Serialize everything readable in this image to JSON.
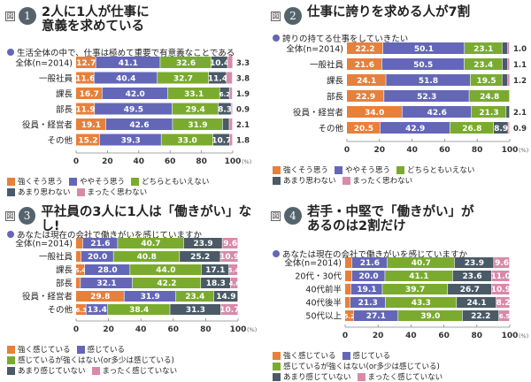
{
  "fig_mark": "図",
  "colors": [
    "#e8803a",
    "#6467b8",
    "#7aab2e",
    "#4a5a66",
    "#d98aa8"
  ],
  "chart_data": [
    {
      "type": "bar",
      "orientation": "horizontal-stacked",
      "number": "1",
      "title": "2人に1人が仕事に\n意義を求めている",
      "question": "生活全体の中で、仕事は極めて重要で有意義なことである",
      "categories": [
        "全体(n=2014)",
        "一般社員",
        "課長",
        "部長",
        "役員・経営者",
        "その他"
      ],
      "series": [
        {
          "name": "強くそう思う",
          "values": [
            12.7,
            11.6,
            16.7,
            11.9,
            19.1,
            15.2
          ]
        },
        {
          "name": "ややそう思う",
          "values": [
            41.1,
            40.4,
            42.0,
            49.5,
            42.6,
            39.3
          ]
        },
        {
          "name": "どちらともいえない",
          "values": [
            32.6,
            32.7,
            33.1,
            29.4,
            31.9,
            33.0
          ]
        },
        {
          "name": "あまり思わない",
          "values": [
            10.4,
            11.4,
            6.2,
            8.3,
            4.3,
            10.7
          ]
        },
        {
          "name": "まったく思わない",
          "values": [
            3.3,
            3.8,
            1.9,
            0.9,
            2.1,
            1.8
          ]
        }
      ],
      "outside_labels": [
        "3.3",
        "3.8",
        "1.9",
        "0.9",
        "2.1",
        "1.8"
      ],
      "xticks": [
        "0",
        "20",
        "40",
        "60",
        "80",
        "100"
      ],
      "xunit": "(%)",
      "xlim": [
        0,
        100
      ],
      "legend_rows": [
        [
          0,
          1,
          2
        ],
        [
          3,
          4
        ]
      ],
      "legend": "bottom-left"
    },
    {
      "type": "bar",
      "orientation": "horizontal-stacked",
      "number": "2",
      "title": "仕事に誇りを求める人が7割",
      "question": "誇りの持てる仕事をしていきたい",
      "categories": [
        "全体(n=2014)",
        "一般社員",
        "課長",
        "部長",
        "役員・経営者",
        "その他"
      ],
      "series": [
        {
          "name": "強くそう思う",
          "values": [
            22.2,
            21.6,
            24.1,
            22.9,
            34.0,
            20.5
          ]
        },
        {
          "name": "ややそう思う",
          "values": [
            50.1,
            50.5,
            51.8,
            52.3,
            42.6,
            42.9
          ]
        },
        {
          "name": "どちらともいえない",
          "values": [
            23.1,
            23.4,
            19.5,
            24.8,
            21.3,
            26.8
          ]
        },
        {
          "name": "あまり思わない",
          "values": [
            3.5,
            3.4,
            3.5,
            0,
            2.1,
            8.9
          ]
        },
        {
          "name": "まったく思わない",
          "values": [
            1.0,
            1.1,
            1.2,
            0,
            0,
            0.9
          ]
        }
      ],
      "outside_labels": [
        "1.0",
        "1.1",
        "1.2",
        "",
        "2.1",
        "0.9"
      ],
      "xticks": [
        "0",
        "20",
        "40",
        "60",
        "80",
        "100"
      ],
      "xunit": "(%)",
      "xlim": [
        0,
        100
      ],
      "legend_rows": [
        [
          0,
          1,
          2
        ],
        [
          3,
          4
        ]
      ],
      "legend": "bottom-left"
    },
    {
      "type": "bar",
      "orientation": "horizontal-stacked",
      "number": "3",
      "title": "平社員の3人に1人は「働きがい」なし!",
      "question": "あなたは現在の会社で働きがいを感じていますか",
      "categories": [
        "全体(n=2014)",
        "一般社員",
        "課長",
        "部長",
        "役員・経営者",
        "その他"
      ],
      "series": [
        {
          "name": "強く感じている",
          "values": [
            4.2,
            3.2,
            5.4,
            2.8,
            29.8,
            6.3
          ]
        },
        {
          "name": "感じている",
          "values": [
            21.6,
            20.0,
            28.0,
            32.1,
            31.9,
            13.4
          ]
        },
        {
          "name": "感じているが強くはない(or多少は感じている)",
          "values": [
            40.7,
            40.8,
            44.0,
            42.2,
            23.4,
            38.4
          ]
        },
        {
          "name": "あまり感じていない",
          "values": [
            23.9,
            25.2,
            17.1,
            18.3,
            14.9,
            31.3
          ]
        },
        {
          "name": "まったく感じていない",
          "values": [
            9.6,
            10.9,
            5.4,
            4.6,
            0,
            10.7
          ]
        }
      ],
      "outside_labels": [
        "",
        "",
        "",
        "",
        "",
        ""
      ],
      "xticks": [
        "0",
        "20",
        "40",
        "60",
        "80",
        "100"
      ],
      "xunit": "(%)",
      "xlim": [
        0,
        100
      ],
      "legend_rows": [
        [
          0,
          1
        ],
        [
          2
        ],
        [
          3,
          4
        ]
      ],
      "legend": "bottom-left"
    },
    {
      "type": "bar",
      "orientation": "horizontal-stacked",
      "number": "4",
      "title": "若手・中堅で「働きがい」が\nあるのは2割だけ",
      "question": "あなたは現在の会社で働きがいを感じていますか",
      "categories": [
        "全体(n=2014)",
        "20代・30代",
        "40代前半",
        "40代後半",
        "50代以上"
      ],
      "series": [
        {
          "name": "強く感じている",
          "values": [
            4.2,
            4.3,
            3.6,
            3.2,
            5.2
          ]
        },
        {
          "name": "感じている",
          "values": [
            21.6,
            20.0,
            19.1,
            21.3,
            27.1
          ]
        },
        {
          "name": "感じているが強くはない(or多少は感じている)",
          "values": [
            40.7,
            41.1,
            39.7,
            43.3,
            39.0
          ]
        },
        {
          "name": "あまり感じていない",
          "values": [
            23.9,
            23.6,
            26.7,
            24.1,
            22.2
          ]
        },
        {
          "name": "まったく感じていない",
          "values": [
            9.6,
            11.0,
            10.9,
            8.2,
            6.5
          ]
        }
      ],
      "outside_labels": [
        "",
        "",
        "",
        "",
        ""
      ],
      "xticks": [
        "0",
        "20",
        "40",
        "60",
        "80",
        "100"
      ],
      "xunit": "(%)",
      "xlim": [
        0,
        100
      ],
      "legend_rows": [
        [
          0,
          1
        ],
        [
          2
        ],
        [
          3,
          4
        ]
      ],
      "legend": "bottom-left"
    }
  ]
}
